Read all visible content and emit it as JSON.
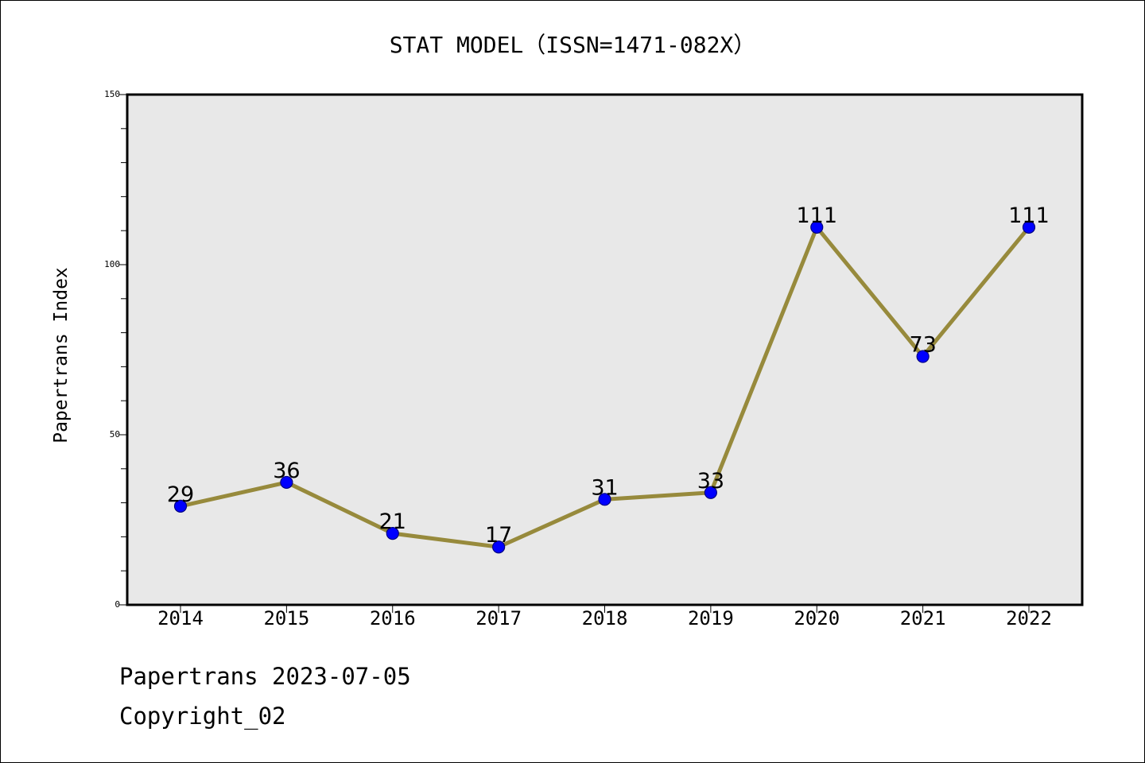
{
  "chart_data": {
    "type": "line",
    "title": "STAT MODEL（ISSN=1471-082X）",
    "xlabel": "",
    "ylabel": "Papertrans Index",
    "categories": [
      "2014",
      "2015",
      "2016",
      "2017",
      "2018",
      "2019",
      "2020",
      "2021",
      "2022"
    ],
    "series": [
      {
        "values": [
          29,
          36,
          21,
          17,
          31,
          33,
          111,
          73,
          111
        ]
      }
    ],
    "ylim": [
      0,
      150
    ],
    "y_ticks": [
      0,
      50,
      100,
      150
    ],
    "y_minor_step": 10,
    "grid": false,
    "legend": "none",
    "data_labels": true,
    "colors": {
      "line": "#978a3c",
      "marker_fill": "#0000ff",
      "marker_edge": "#000080",
      "plot_bg": "#e8e8e8"
    }
  },
  "footer": {
    "line1": "Papertrans 2023-07-05",
    "line2": "Copyright_02"
  }
}
